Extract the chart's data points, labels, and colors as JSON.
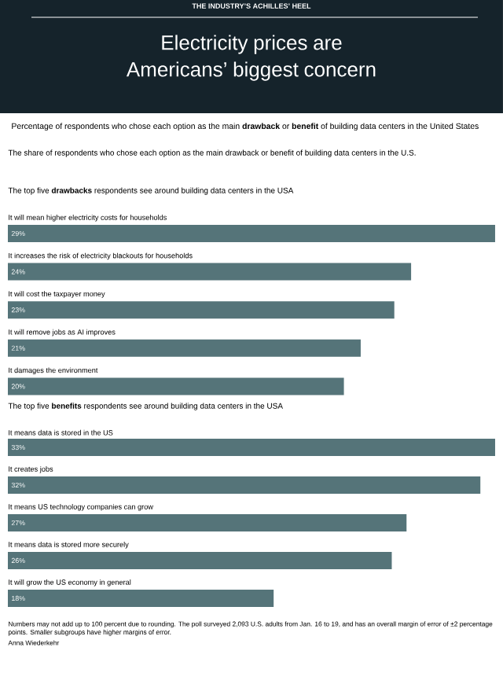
{
  "chart_data": [
    {
      "type": "other",
      "title": "Electricity prices are Americans’ biggest concern",
      "subtitle": "Percentage of respondents who chose each option as the main **drawback** or **benefit** of building data centers in the United States",
      "annotations": [
        "THE INDUSTRY’S ACHILLES’ HEEL",
        "The share of respondents who chose each option as the main drawback or benefit of building data centers in the U.S."
      ]
    },
    {
      "type": "bar",
      "orientation": "horizontal",
      "title": "The top five **drawbacks** respondents see around building data centers in the USA",
      "color": "#557479",
      "categories": [
        "It will mean higher electricity costs for households",
        "It increases the risk of electricity blackouts for households",
        "It will cost the taxpayer money",
        "It will remove jobs as AI improves",
        "It damages the environment"
      ],
      "values": [
        29,
        24,
        23,
        21,
        20
      ],
      "value_labels": [
        "29%",
        "24%",
        "23%",
        "21%",
        "20%"
      ]
    },
    {
      "type": "bar",
      "orientation": "horizontal",
      "title": "The top five **benefits** respondents see around building data centers in the USA",
      "color": "#557479",
      "categories": [
        "It means data is stored in the US",
        "It creates jobs",
        "It means US technology companies can grow",
        "It means data is stored more securely",
        "It will grow the US economy in general"
      ],
      "values": [
        33,
        32,
        27,
        26,
        18
      ],
      "value_labels": [
        "33%",
        "32%",
        "27%",
        "26%",
        "18%"
      ],
      "annotations": [
        "Numbers may not add up to 100 percent due to rounding. The poll surveyed 2,093 U.S. adults from Jan. 16 to 19, and has an overall margin of error of ±2 percentage points. Smaller subgroups have higher margins of error.",
        "Anna Wiederkehr"
      ]
    }
  ]
}
